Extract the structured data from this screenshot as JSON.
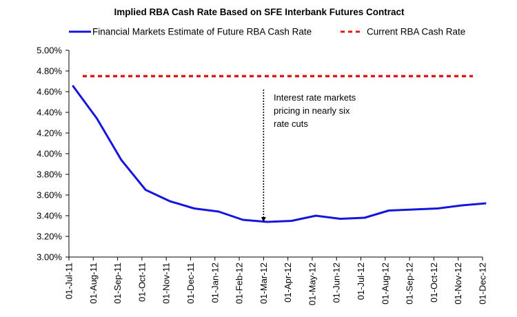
{
  "chart_data": {
    "type": "line",
    "title": "Implied RBA Cash Rate Based on SFE Interbank Futures Contract",
    "xlabel": "",
    "ylabel": "",
    "categories": [
      "01-Jul-11",
      "01-Aug-11",
      "01-Sep-11",
      "01-Oct-11",
      "01-Nov-11",
      "01-Dec-11",
      "01-Jan-12",
      "01-Feb-12",
      "01-Mar-12",
      "01-Apr-12",
      "01-May-12",
      "01-Jun-12",
      "01-Jul-12",
      "01-Aug-12",
      "01-Sep-12",
      "01-Oct-12",
      "01-Nov-12",
      "01-Dec-12"
    ],
    "ylim": [
      3.0,
      5.0
    ],
    "yticks": [
      "3.00%",
      "3.20%",
      "3.40%",
      "3.60%",
      "3.80%",
      "4.00%",
      "4.20%",
      "4.40%",
      "4.60%",
      "4.80%",
      "5.00%"
    ],
    "grid": false,
    "legend_position": "top",
    "series": [
      {
        "name": "Financial Markets Estimate of Future RBA Cash Rate",
        "style": "solid",
        "color": "#1515e0",
        "values": [
          4.66,
          4.34,
          3.94,
          3.65,
          3.54,
          3.47,
          3.44,
          3.36,
          3.34,
          3.35,
          3.4,
          3.37,
          3.38,
          3.45,
          3.46,
          3.47,
          3.5,
          3.52
        ]
      },
      {
        "name": "Current RBA Cash Rate",
        "style": "dashed",
        "color": "#e01818",
        "values": [
          4.75,
          4.75,
          4.75,
          4.75,
          4.75,
          4.75,
          4.75,
          4.75,
          4.75,
          4.75,
          4.75,
          4.75,
          4.75,
          4.75,
          4.75,
          4.75,
          4.75,
          4.75
        ]
      }
    ],
    "annotation": {
      "lines": [
        "Interest rate markets",
        "pricing in nearly six",
        "rate cuts"
      ],
      "arrow_category": "01-Mar-12",
      "arrow_from_value": 4.62,
      "arrow_to_value": 3.34
    }
  }
}
